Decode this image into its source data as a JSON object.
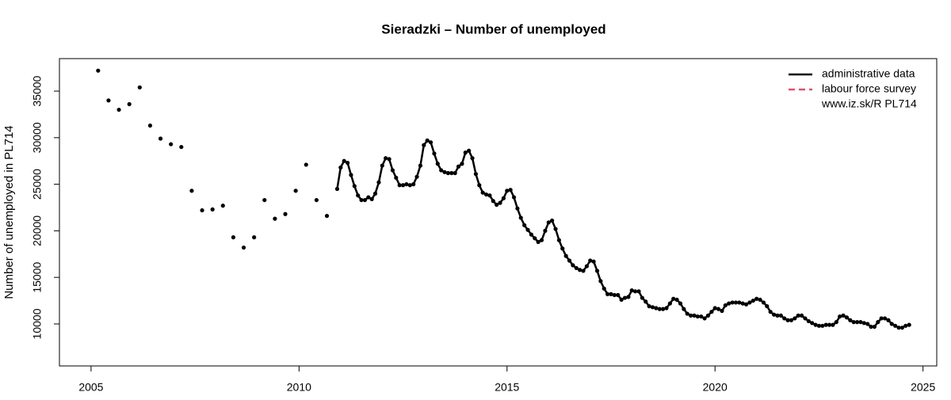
{
  "chart_data": {
    "type": "line",
    "title": "Sieradzki – Number of unemployed",
    "y_label": "Number of unemployed in PL714",
    "legend_note": "www.iz.sk/R PL714",
    "legend_position": "top-right",
    "xlim": [
      2004.24,
      2025.33
    ],
    "ylim": [
      5490,
      38490
    ],
    "xticks": [
      2005,
      2010,
      2015,
      2020,
      2025
    ],
    "yticks": [
      10000,
      15000,
      20000,
      25000,
      30000,
      35000
    ],
    "series": [
      {
        "name": "administrative data",
        "color": "#000000",
        "dash": "solid",
        "markers": true,
        "x": [
          2005.17,
          2005.42,
          2005.67,
          2005.92,
          2006.17,
          2006.42,
          2006.67,
          2006.92,
          2007.17,
          2007.42,
          2007.67,
          2007.92,
          2008.17,
          2008.42,
          2008.67,
          2008.92,
          2009.17,
          2009.42,
          2009.67,
          2009.92,
          2010.17,
          2010.42,
          2010.67,
          2010.917,
          2011,
          2011.083,
          2011.167,
          2011.25,
          2011.333,
          2011.417,
          2011.5,
          2011.583,
          2011.667,
          2011.75,
          2011.833,
          2011.917,
          2012,
          2012.083,
          2012.167,
          2012.25,
          2012.333,
          2012.417,
          2012.5,
          2012.583,
          2012.667,
          2012.75,
          2012.833,
          2012.917,
          2013,
          2013.083,
          2013.167,
          2013.25,
          2013.333,
          2013.417,
          2013.5,
          2013.583,
          2013.667,
          2013.75,
          2013.833,
          2013.917,
          2014,
          2014.083,
          2014.167,
          2014.25,
          2014.333,
          2014.417,
          2014.5,
          2014.583,
          2014.667,
          2014.75,
          2014.833,
          2014.917,
          2015,
          2015.083,
          2015.167,
          2015.25,
          2015.333,
          2015.417,
          2015.5,
          2015.583,
          2015.667,
          2015.75,
          2015.833,
          2015.917,
          2016,
          2016.083,
          2016.167,
          2016.25,
          2016.333,
          2016.417,
          2016.5,
          2016.583,
          2016.667,
          2016.75,
          2016.833,
          2016.917,
          2017,
          2017.083,
          2017.167,
          2017.25,
          2017.333,
          2017.417,
          2017.5,
          2017.583,
          2017.667,
          2017.75,
          2017.833,
          2017.917,
          2018,
          2018.083,
          2018.167,
          2018.25,
          2018.333,
          2018.417,
          2018.5,
          2018.583,
          2018.667,
          2018.75,
          2018.833,
          2018.917,
          2019,
          2019.083,
          2019.167,
          2019.25,
          2019.333,
          2019.417,
          2019.5,
          2019.583,
          2019.667,
          2019.75,
          2019.833,
          2019.917,
          2020,
          2020.083,
          2020.167,
          2020.25,
          2020.333,
          2020.417,
          2020.5,
          2020.583,
          2020.667,
          2020.75,
          2020.833,
          2020.917,
          2021,
          2021.083,
          2021.167,
          2021.25,
          2021.333,
          2021.417,
          2021.5,
          2021.583,
          2021.667,
          2021.75,
          2021.833,
          2021.917,
          2022,
          2022.083,
          2022.167,
          2022.25,
          2022.333,
          2022.417,
          2022.5,
          2022.583,
          2022.667,
          2022.75,
          2022.833,
          2022.917,
          2023,
          2023.083,
          2023.167,
          2023.25,
          2023.333,
          2023.417,
          2023.5,
          2023.583,
          2023.667,
          2023.75,
          2023.833,
          2023.917,
          2024,
          2024.083,
          2024.167,
          2024.25,
          2024.333,
          2024.417,
          2024.5,
          2024.583,
          2024.667
        ],
        "values": [
          37200,
          34000,
          33000,
          33600,
          35400,
          31300,
          29900,
          29300,
          29000,
          24300,
          22200,
          22300,
          22700,
          19300,
          18200,
          19300,
          23300,
          21300,
          21800,
          24300,
          27100,
          23300,
          21600,
          24500,
          26800,
          27500,
          27300,
          26000,
          24800,
          23800,
          23300,
          23300,
          23600,
          23400,
          24000,
          25200,
          27000,
          27800,
          27700,
          26500,
          25700,
          24900,
          24900,
          25000,
          24900,
          25000,
          25800,
          27000,
          29200,
          29700,
          29500,
          28300,
          27200,
          26500,
          26300,
          26200,
          26200,
          26200,
          26900,
          27200,
          28400,
          28600,
          27800,
          26100,
          24900,
          24100,
          23900,
          23800,
          23200,
          22800,
          23000,
          23500,
          24300,
          24400,
          23600,
          22400,
          21400,
          20600,
          20100,
          19600,
          19200,
          18800,
          19000,
          20000,
          20900,
          21100,
          20200,
          19000,
          18100,
          17300,
          16800,
          16300,
          16000,
          15800,
          15700,
          16200,
          16800,
          16700,
          15700,
          14600,
          13800,
          13200,
          13200,
          13100,
          13100,
          12600,
          12800,
          12900,
          13600,
          13500,
          13500,
          12800,
          12400,
          11900,
          11800,
          11700,
          11600,
          11600,
          11700,
          12200,
          12700,
          12600,
          12200,
          11600,
          11100,
          10900,
          10900,
          10800,
          10800,
          10600,
          10900,
          11300,
          11700,
          11600,
          11400,
          12000,
          12200,
          12300,
          12300,
          12300,
          12200,
          12100,
          12300,
          12500,
          12700,
          12600,
          12300,
          11900,
          11300,
          11000,
          10900,
          10900,
          10600,
          10400,
          10400,
          10600,
          10900,
          10900,
          10600,
          10300,
          10100,
          9900,
          9800,
          9800,
          9900,
          9900,
          9900,
          10200,
          10800,
          10900,
          10700,
          10400,
          10200,
          10200,
          10200,
          10100,
          10000,
          9700,
          9700,
          10200,
          10600,
          10600,
          10400,
          10000,
          9800,
          9600,
          9600,
          9800,
          9900
        ]
      },
      {
        "name": "labour force survey",
        "color": "#df536b",
        "dash": "dashed",
        "markers": false,
        "x": [],
        "values": []
      }
    ]
  }
}
